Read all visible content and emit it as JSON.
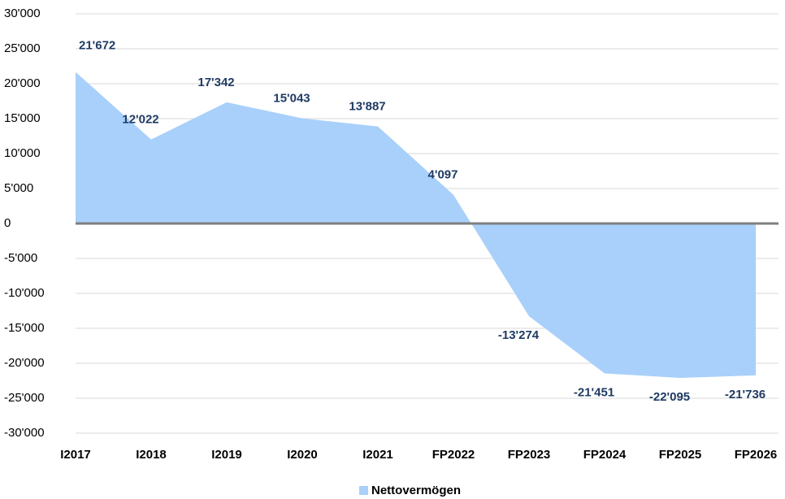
{
  "chart_data": {
    "type": "area",
    "categories": [
      "I2017",
      "I2018",
      "I2019",
      "I2020",
      "I2021",
      "FP2022",
      "FP2023",
      "FP2024",
      "FP2025",
      "FP2026"
    ],
    "series": [
      {
        "name": "Nettovermögen",
        "color": "#a8d0fa",
        "values": [
          21672,
          12022,
          17342,
          15043,
          13887,
          4097,
          -13274,
          -21451,
          -22095,
          -21736
        ],
        "value_labels": [
          "21'672",
          "12'022",
          "17'342",
          "15'043",
          "13'887",
          "4'097",
          "-13'274",
          "-21'451",
          "-22'095",
          "-21'736"
        ]
      }
    ],
    "ylim": [
      -30000,
      30000
    ],
    "yticks": [
      {
        "value": -30000,
        "label": "-30'000"
      },
      {
        "value": -25000,
        "label": "-25'000"
      },
      {
        "value": -20000,
        "label": "-20'000"
      },
      {
        "value": -15000,
        "label": "-15'000"
      },
      {
        "value": -10000,
        "label": "-10'000"
      },
      {
        "value": -5000,
        "label": "-5'000"
      },
      0,
      {
        "value": 5000,
        "label": "5'000"
      },
      {
        "value": 10000,
        "label": "10'000"
      },
      {
        "value": 15000,
        "label": "15'000"
      },
      {
        "value": 20000,
        "label": "20'000"
      },
      {
        "value": 25000,
        "label": "25'000"
      },
      {
        "value": 30000,
        "label": "30'000"
      }
    ],
    "grid": true,
    "legend": "bottom"
  }
}
